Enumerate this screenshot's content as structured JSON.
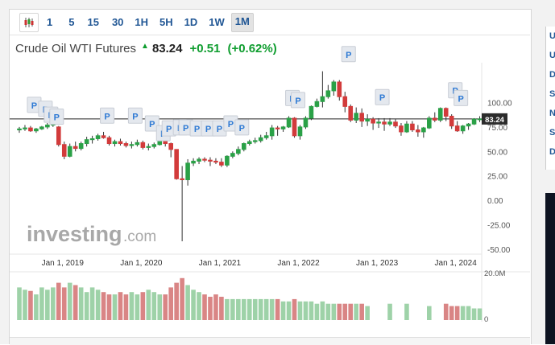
{
  "toolbar": {
    "chart_type_icon": "candlestick-icon",
    "timeframes": [
      "1",
      "5",
      "15",
      "30",
      "1H",
      "5H",
      "1D",
      "1W",
      "1M"
    ],
    "active_timeframe": "1M"
  },
  "instrument": {
    "name": "Crude Oil WTI Futures",
    "trend_icon": "up-arrow-icon",
    "price": "83.24",
    "change": "+0.51",
    "change_pct": "(+0.62%)"
  },
  "watermark": {
    "brand": "investing",
    "suffix": ".com"
  },
  "price_tag": "83.24",
  "event_marker_label": "P",
  "right_panel_letters": [
    "U",
    "U",
    "D",
    "S",
    "N",
    "S",
    "D"
  ],
  "colors": {
    "up": "#2aa147",
    "down": "#d23b3b",
    "vol_up": "#9ed2a8",
    "vol_down": "#d98585",
    "accent": "#215795",
    "price_line": "#222222"
  },
  "chart_data": {
    "type": "candlestick",
    "y_ticks": [
      "100.00",
      "75.00",
      "50.00",
      "25.00",
      "0.00",
      "-25.00",
      "-50.00"
    ],
    "x_ticks": [
      "Jan 1, 2019",
      "Jan 1, 2020",
      "Jan 1, 2021",
      "Jan 1, 2022",
      "Jan 1, 2023",
      "Jan 1, 2024"
    ],
    "ylim": [
      -55,
      150
    ],
    "volume_ticks": [
      "20.0M",
      "0"
    ],
    "volume_max": 20,
    "last_price": 83.24,
    "candles": [
      [
        0,
        72,
        75,
        69,
        73
      ],
      [
        1,
        73,
        77,
        71,
        74
      ],
      [
        2,
        74,
        76,
        70,
        71
      ],
      [
        3,
        71,
        74,
        69,
        73
      ],
      [
        4,
        73,
        76,
        72,
        75
      ],
      [
        5,
        75,
        79,
        73,
        77
      ],
      [
        6,
        77,
        80,
        75,
        79
      ],
      [
        7,
        75,
        76,
        55,
        57
      ],
      [
        8,
        57,
        60,
        42,
        45
      ],
      [
        9,
        45,
        58,
        44,
        55
      ],
      [
        10,
        55,
        60,
        50,
        53
      ],
      [
        11,
        53,
        60,
        51,
        58
      ],
      [
        12,
        58,
        65,
        55,
        62
      ],
      [
        13,
        62,
        66,
        58,
        63
      ],
      [
        14,
        63,
        68,
        61,
        66
      ],
      [
        15,
        66,
        70,
        63,
        64
      ],
      [
        16,
        64,
        66,
        56,
        58
      ],
      [
        17,
        58,
        62,
        55,
        60
      ],
      [
        18,
        60,
        63,
        56,
        58
      ],
      [
        19,
        58,
        60,
        54,
        56
      ],
      [
        20,
        56,
        60,
        53,
        57
      ],
      [
        21,
        57,
        62,
        55,
        59
      ],
      [
        22,
        59,
        61,
        52,
        54
      ],
      [
        23,
        54,
        58,
        51,
        55
      ],
      [
        24,
        55,
        59,
        53,
        57
      ],
      [
        25,
        57,
        64,
        56,
        62
      ],
      [
        26,
        62,
        65,
        55,
        58
      ],
      [
        27,
        58,
        59,
        44,
        52
      ],
      [
        28,
        52,
        52,
        21,
        22
      ],
      [
        29,
        22,
        35,
        -42,
        21
      ],
      [
        30,
        21,
        42,
        15,
        38
      ],
      [
        31,
        38,
        43,
        35,
        40
      ],
      [
        32,
        40,
        44,
        37,
        42
      ],
      [
        33,
        42,
        44,
        39,
        41
      ],
      [
        34,
        41,
        44,
        35,
        40
      ],
      [
        35,
        40,
        43,
        37,
        39
      ],
      [
        36,
        39,
        43,
        34,
        36
      ],
      [
        37,
        36,
        46,
        34,
        45
      ],
      [
        38,
        45,
        50,
        43,
        48
      ],
      [
        39,
        48,
        55,
        46,
        52
      ],
      [
        40,
        52,
        59,
        50,
        58
      ],
      [
        41,
        58,
        62,
        56,
        60
      ],
      [
        42,
        60,
        64,
        58,
        61
      ],
      [
        43,
        61,
        67,
        59,
        64
      ],
      [
        44,
        64,
        70,
        62,
        66
      ],
      [
        45,
        66,
        77,
        62,
        74
      ],
      [
        46,
        74,
        76,
        66,
        73
      ],
      [
        47,
        73,
        76,
        70,
        75
      ],
      [
        48,
        75,
        86,
        74,
        84
      ],
      [
        49,
        84,
        85,
        64,
        66
      ],
      [
        50,
        66,
        77,
        62,
        75
      ],
      [
        51,
        75,
        86,
        73,
        84
      ],
      [
        52,
        84,
        97,
        82,
        96
      ],
      [
        53,
        96,
        104,
        95,
        101
      ],
      [
        54,
        101,
        132,
        95,
        106
      ],
      [
        55,
        106,
        118,
        104,
        112
      ],
      [
        56,
        112,
        123,
        107,
        121
      ],
      [
        57,
        121,
        123,
        102,
        106
      ],
      [
        58,
        106,
        111,
        90,
        96
      ],
      [
        59,
        96,
        98,
        80,
        82
      ],
      [
        60,
        82,
        95,
        79,
        89
      ],
      [
        61,
        89,
        94,
        75,
        81
      ],
      [
        62,
        81,
        88,
        76,
        83
      ],
      [
        63,
        83,
        85,
        72,
        79
      ],
      [
        64,
        79,
        84,
        74,
        80
      ],
      [
        65,
        80,
        84,
        71,
        78
      ],
      [
        66,
        78,
        84,
        76,
        80
      ],
      [
        67,
        80,
        83,
        74,
        76
      ],
      [
        68,
        76,
        79,
        66,
        70
      ],
      [
        69,
        70,
        81,
        69,
        78
      ],
      [
        70,
        78,
        81,
        70,
        72
      ],
      [
        71,
        72,
        77,
        65,
        70
      ],
      [
        72,
        70,
        75,
        64,
        74
      ],
      [
        73,
        74,
        86,
        73,
        84
      ],
      [
        74,
        84,
        90,
        80,
        82
      ],
      [
        75,
        82,
        95,
        80,
        94
      ],
      [
        76,
        94,
        95,
        81,
        86
      ],
      [
        77,
        86,
        88,
        73,
        76
      ],
      [
        78,
        76,
        81,
        70,
        71
      ],
      [
        79,
        71,
        77,
        68,
        76
      ],
      [
        80,
        76,
        79,
        72,
        78
      ],
      [
        81,
        78,
        84,
        77,
        83
      ],
      [
        82,
        83,
        86,
        80,
        83.24
      ]
    ],
    "volumes": [
      [
        0,
        14
      ],
      [
        1,
        13
      ],
      [
        2,
        12.5
      ],
      [
        3,
        11
      ],
      [
        4,
        14
      ],
      [
        5,
        13
      ],
      [
        6,
        14
      ],
      [
        7,
        16
      ],
      [
        8,
        14
      ],
      [
        9,
        16
      ],
      [
        10,
        15
      ],
      [
        11,
        14
      ],
      [
        12,
        12
      ],
      [
        13,
        14
      ],
      [
        14,
        13
      ],
      [
        15,
        12
      ],
      [
        16,
        11
      ],
      [
        17,
        11
      ],
      [
        18,
        12
      ],
      [
        19,
        11
      ],
      [
        20,
        12
      ],
      [
        21,
        11
      ],
      [
        22,
        12
      ],
      [
        23,
        13
      ],
      [
        24,
        12
      ],
      [
        25,
        11
      ],
      [
        26,
        11
      ],
      [
        27,
        14
      ],
      [
        28,
        16
      ],
      [
        29,
        18
      ],
      [
        30,
        15
      ],
      [
        31,
        13
      ],
      [
        32,
        12
      ],
      [
        33,
        11
      ],
      [
        34,
        10
      ],
      [
        35,
        11
      ],
      [
        36,
        10
      ],
      [
        37,
        9
      ],
      [
        38,
        9
      ],
      [
        39,
        9
      ],
      [
        40,
        9
      ],
      [
        41,
        9
      ],
      [
        42,
        9
      ],
      [
        43,
        9
      ],
      [
        44,
        9
      ],
      [
        45,
        9
      ],
      [
        46,
        9
      ],
      [
        47,
        8
      ],
      [
        48,
        8
      ],
      [
        49,
        9
      ],
      [
        50,
        8
      ],
      [
        51,
        8
      ],
      [
        52,
        8
      ],
      [
        53,
        7
      ],
      [
        54,
        8
      ],
      [
        55,
        7
      ],
      [
        56,
        7
      ],
      [
        57,
        7
      ],
      [
        58,
        7
      ],
      [
        59,
        7
      ],
      [
        60,
        7
      ],
      [
        61,
        7
      ],
      [
        62,
        6
      ],
      [
        63,
        0
      ],
      [
        64,
        0
      ],
      [
        65,
        0
      ],
      [
        66,
        7
      ],
      [
        67,
        0
      ],
      [
        68,
        0
      ],
      [
        69,
        7
      ],
      [
        70,
        0
      ],
      [
        71,
        0
      ],
      [
        72,
        0
      ],
      [
        73,
        6
      ],
      [
        74,
        0
      ],
      [
        75,
        0
      ],
      [
        76,
        7
      ],
      [
        77,
        6
      ],
      [
        78,
        6
      ],
      [
        79,
        6
      ],
      [
        80,
        6
      ],
      [
        81,
        5
      ],
      [
        82,
        5
      ]
    ],
    "event_markers": [
      [
        2,
        98
      ],
      [
        4,
        94
      ],
      [
        5,
        88
      ],
      [
        6,
        86
      ],
      [
        15,
        87
      ],
      [
        20,
        87
      ],
      [
        23,
        79
      ],
      [
        25,
        69
      ],
      [
        26,
        74
      ],
      [
        28,
        75
      ],
      [
        29,
        75
      ],
      [
        31,
        74
      ],
      [
        33,
        74
      ],
      [
        35,
        74
      ],
      [
        37,
        79
      ],
      [
        39,
        75
      ],
      [
        48,
        105
      ],
      [
        49,
        103
      ],
      [
        58,
        150
      ],
      [
        64,
        106
      ],
      [
        77,
        113
      ],
      [
        78,
        105
      ]
    ]
  }
}
